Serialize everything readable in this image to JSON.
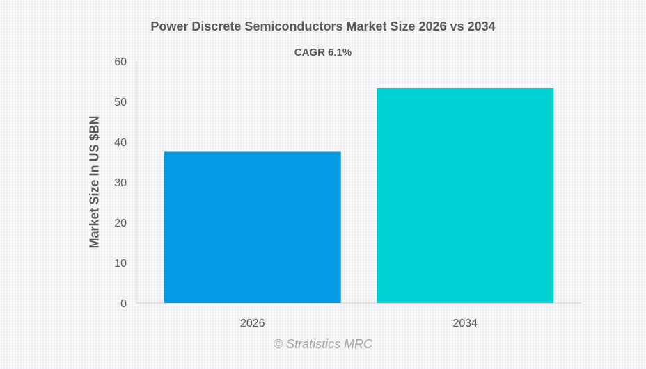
{
  "chart_data": {
    "type": "bar",
    "title": "Power Discrete Semiconductors Market Size 2026 vs 2034",
    "subtitle": "CAGR 6.1%",
    "xlabel": "",
    "ylabel": "Market Size In US $BN",
    "categories": [
      "2026",
      "2034"
    ],
    "values": [
      37.5,
      53.3
    ],
    "colors": [
      "#039be5",
      "#00d2d3"
    ],
    "ylim": [
      0,
      60
    ],
    "yticks": [
      "0",
      "10",
      "20",
      "30",
      "40",
      "50",
      "60"
    ],
    "grid": false,
    "legend": "none"
  },
  "footer": "© Stratistics MRC"
}
